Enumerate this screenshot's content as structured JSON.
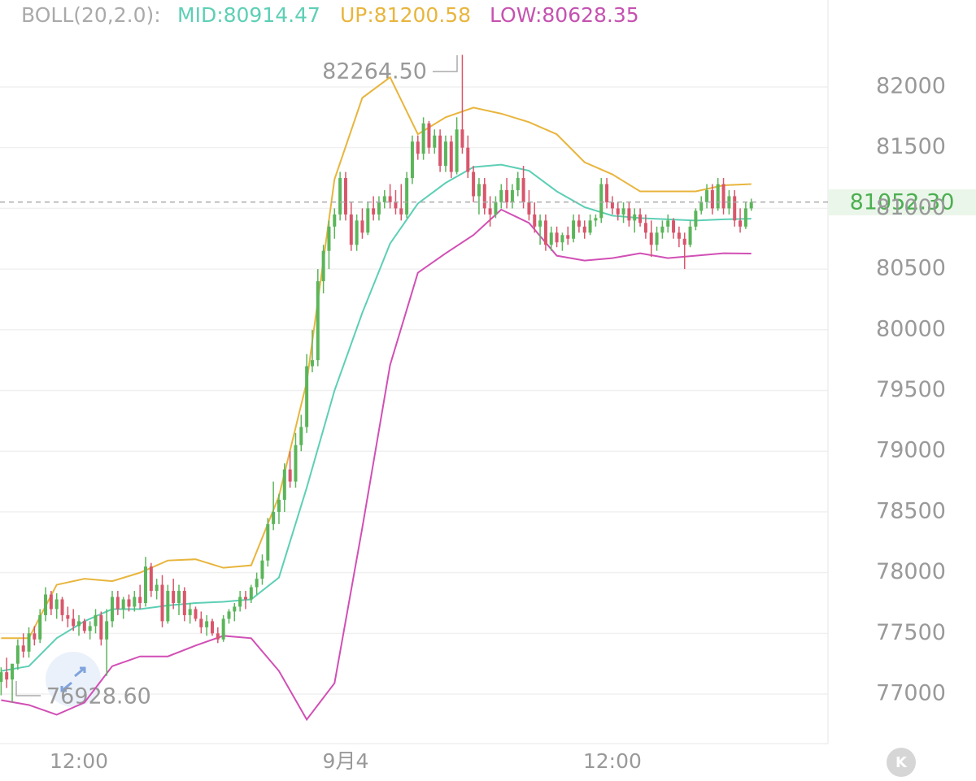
{
  "chart_data": {
    "type": "candlestick",
    "header": {
      "name": "BOLL(20,2.0):",
      "mid": "MID:80914.47",
      "up": "UP:81200.58",
      "low": "LOW:80628.35"
    },
    "up_color": "#5bb55a",
    "down_color": "#d8566b",
    "ohlc": [
      [
        77100,
        77220,
        76990,
        77180
      ],
      [
        77180,
        77300,
        77050,
        77120
      ],
      [
        77120,
        77200,
        76928.6,
        77250
      ],
      [
        77250,
        77450,
        77200,
        77400
      ],
      [
        77400,
        77500,
        77300,
        77350
      ],
      [
        77350,
        77550,
        77300,
        77500
      ],
      [
        77500,
        77560,
        77400,
        77450
      ],
      [
        77450,
        77700,
        77420,
        77650
      ],
      [
        77650,
        77880,
        77600,
        77820
      ],
      [
        77820,
        77850,
        77650,
        77700
      ],
      [
        77700,
        77830,
        77620,
        77780
      ],
      [
        77780,
        77800,
        77600,
        77650
      ],
      [
        77650,
        77720,
        77550,
        77620
      ],
      [
        77620,
        77700,
        77520,
        77560
      ],
      [
        77560,
        77650,
        77480,
        77600
      ],
      [
        77600,
        77620,
        77500,
        77520
      ],
      [
        77520,
        77600,
        77450,
        77560
      ],
      [
        77560,
        77700,
        77500,
        77650
      ],
      [
        77650,
        77680,
        77400,
        77450
      ],
      [
        77450,
        77700,
        77150,
        77600
      ],
      [
        77600,
        77850,
        77550,
        77800
      ],
      [
        77800,
        77850,
        77650,
        77700
      ],
      [
        77700,
        77800,
        77620,
        77780
      ],
      [
        77780,
        77820,
        77680,
        77720
      ],
      [
        77720,
        77850,
        77680,
        77800
      ],
      [
        77800,
        77900,
        77700,
        77750
      ],
      [
        77750,
        78130,
        77720,
        78050
      ],
      [
        78050,
        78080,
        77800,
        77850
      ],
      [
        77850,
        77950,
        77780,
        77900
      ],
      [
        77900,
        77980,
        77550,
        77600
      ],
      [
        77600,
        77900,
        77580,
        77850
      ],
      [
        77850,
        77950,
        77700,
        77750
      ],
      [
        77750,
        77900,
        77650,
        77850
      ],
      [
        77850,
        77880,
        77600,
        77650
      ],
      [
        77650,
        77750,
        77580,
        77700
      ],
      [
        77700,
        77720,
        77600,
        77620
      ],
      [
        77620,
        77680,
        77500,
        77550
      ],
      [
        77550,
        77650,
        77480,
        77600
      ],
      [
        77600,
        77620,
        77480,
        77500
      ],
      [
        77500,
        77550,
        77420,
        77450
      ],
      [
        77450,
        77650,
        77430,
        77620
      ],
      [
        77620,
        77700,
        77580,
        77680
      ],
      [
        77680,
        77750,
        77600,
        77720
      ],
      [
        77720,
        77850,
        77680,
        77800
      ],
      [
        77800,
        77850,
        77700,
        77780
      ],
      [
        77780,
        77900,
        77750,
        77880
      ],
      [
        77880,
        78000,
        77820,
        77950
      ],
      [
        77950,
        78150,
        77900,
        78100
      ],
      [
        78100,
        78450,
        78050,
        78400
      ],
      [
        78400,
        78750,
        78350,
        78500
      ],
      [
        78500,
        78650,
        78400,
        78600
      ],
      [
        78600,
        78900,
        78500,
        78850
      ],
      [
        78850,
        79000,
        78700,
        78750
      ],
      [
        78750,
        79150,
        78700,
        79050
      ],
      [
        79050,
        79300,
        79000,
        79200
      ],
      [
        79200,
        79800,
        79150,
        79700
      ],
      [
        79700,
        80000,
        79650,
        79750
      ],
      [
        79750,
        80500,
        79700,
        80400
      ],
      [
        80400,
        80700,
        80300,
        80650
      ],
      [
        80650,
        80900,
        80500,
        80850
      ],
      [
        80850,
        81000,
        80750,
        80950
      ],
      [
        80950,
        81300,
        80900,
        81250
      ],
      [
        81250,
        81300,
        80900,
        80950
      ],
      [
        80950,
        81050,
        80650,
        80700
      ],
      [
        80700,
        80950,
        80650,
        80900
      ],
      [
        80900,
        81000,
        80750,
        80800
      ],
      [
        80800,
        81050,
        80780,
        81000
      ],
      [
        81000,
        81100,
        80900,
        80950
      ],
      [
        80950,
        81100,
        80900,
        81050
      ],
      [
        81050,
        81150,
        81000,
        81100
      ],
      [
        81100,
        81200,
        81000,
        81050
      ],
      [
        81050,
        81150,
        80950,
        81000
      ],
      [
        81000,
        81200,
        80900,
        80950
      ],
      [
        80950,
        81300,
        80920,
        81250
      ],
      [
        81250,
        81600,
        81200,
        81550
      ],
      [
        81550,
        81600,
        81400,
        81450
      ],
      [
        81450,
        81750,
        81400,
        81700
      ],
      [
        81700,
        81720,
        81450,
        81500
      ],
      [
        81500,
        81650,
        81450,
        81600
      ],
      [
        81600,
        81650,
        81300,
        81350
      ],
      [
        81350,
        81600,
        81300,
        81550
      ],
      [
        81550,
        81600,
        81250,
        81300
      ],
      [
        81300,
        81750,
        81280,
        81650
      ],
      [
        81650,
        82264.5,
        81450,
        81500
      ],
      [
        81500,
        81600,
        81250,
        81300
      ],
      [
        81300,
        81350,
        81050,
        81100
      ],
      [
        81100,
        81250,
        80950,
        81200
      ],
      [
        81200,
        81250,
        80950,
        81000
      ],
      [
        81000,
        81100,
        80850,
        80950
      ],
      [
        80950,
        81100,
        80920,
        81050
      ],
      [
        81050,
        81200,
        81000,
        81150
      ],
      [
        81150,
        81250,
        81000,
        81050
      ],
      [
        81050,
        81200,
        81000,
        81150
      ],
      [
        81150,
        81300,
        81100,
        81250
      ],
      [
        81250,
        81350,
        81000,
        81050
      ],
      [
        81050,
        81150,
        80900,
        80950
      ],
      [
        80950,
        81050,
        80800,
        80850
      ],
      [
        80850,
        80950,
        80700,
        80900
      ],
      [
        80900,
        80950,
        80650,
        80700
      ],
      [
        80700,
        80850,
        80650,
        80800
      ],
      [
        80800,
        80850,
        80680,
        80720
      ],
      [
        80720,
        80800,
        80650,
        80780
      ],
      [
        80780,
        80850,
        80700,
        80750
      ],
      [
        80750,
        80950,
        80720,
        80900
      ],
      [
        80900,
        80950,
        80800,
        80850
      ],
      [
        80850,
        80900,
        80750,
        80800
      ],
      [
        80800,
        80950,
        80780,
        80900
      ],
      [
        80900,
        80950,
        80850,
        80920
      ],
      [
        80920,
        81250,
        80880,
        81200
      ],
      [
        81200,
        81250,
        81000,
        81050
      ],
      [
        81050,
        81100,
        80950,
        81000
      ],
      [
        81000,
        81050,
        80900,
        80950
      ],
      [
        80950,
        81050,
        80880,
        81000
      ],
      [
        81000,
        81050,
        80850,
        80900
      ],
      [
        80900,
        81000,
        80800,
        80950
      ],
      [
        80950,
        81000,
        80850,
        80880
      ],
      [
        80880,
        80950,
        80750,
        80800
      ],
      [
        80800,
        80900,
        80600,
        80700
      ],
      [
        80700,
        80850,
        80650,
        80800
      ],
      [
        80800,
        80900,
        80750,
        80850
      ],
      [
        80850,
        80950,
        80800,
        80900
      ],
      [
        80900,
        80920,
        80750,
        80800
      ],
      [
        80800,
        80850,
        80680,
        80750
      ],
      [
        80750,
        80800,
        80500,
        80700
      ],
      [
        80700,
        80900,
        80680,
        80850
      ],
      [
        80850,
        81000,
        80820,
        80980
      ],
      [
        80980,
        81100,
        80950,
        81050
      ],
      [
        81050,
        81200,
        81000,
        81150
      ],
      [
        81150,
        81200,
        80950,
        81000
      ],
      [
        81000,
        81250,
        80980,
        81200
      ],
      [
        81200,
        81250,
        80950,
        81000
      ],
      [
        81000,
        81150,
        80950,
        81100
      ],
      [
        81100,
        81150,
        80850,
        80900
      ],
      [
        80900,
        81000,
        80800,
        80850
      ],
      [
        80850,
        81050,
        80830,
        81000
      ],
      [
        81000,
        81080,
        80980,
        81052.3
      ]
    ],
    "bands": [
      {
        "color": "#e8b53d",
        "x": [
          0,
          5,
          10,
          15,
          20,
          25,
          30,
          35,
          40,
          45,
          50,
          55,
          60,
          65,
          70,
          75,
          80,
          85,
          90,
          95,
          100,
          105,
          110,
          115,
          120,
          125,
          130,
          135
        ],
        "values": [
          77460,
          77460,
          77900,
          77950,
          77930,
          78000,
          78100,
          78110,
          78040,
          78060,
          78630,
          79570,
          81240,
          81910,
          82080,
          81610,
          81750,
          81830,
          81780,
          81710,
          81610,
          81380,
          81280,
          81140,
          81140,
          81140,
          81190,
          81200
        ]
      },
      {
        "color": "#5dcfb5",
        "x": [
          0,
          5,
          10,
          15,
          20,
          25,
          30,
          35,
          40,
          45,
          50,
          55,
          60,
          65,
          70,
          75,
          80,
          85,
          90,
          95,
          100,
          105,
          110,
          115,
          120,
          125,
          130,
          135
        ],
        "values": [
          77190,
          77230,
          77460,
          77600,
          77700,
          77700,
          77730,
          77750,
          77760,
          77780,
          77960,
          78700,
          79500,
          80140,
          80710,
          81040,
          81210,
          81340,
          81360,
          81310,
          81140,
          81010,
          80940,
          80920,
          80910,
          80900,
          80910,
          80915
        ]
      },
      {
        "color": "#d14fb5",
        "x": [
          0,
          5,
          10,
          15,
          20,
          25,
          30,
          35,
          40,
          45,
          50,
          55,
          60,
          65,
          70,
          75,
          80,
          85,
          90,
          95,
          100,
          105,
          110,
          115,
          120,
          125,
          130,
          135
        ],
        "values": [
          76950,
          76910,
          76830,
          76930,
          77230,
          77310,
          77310,
          77400,
          77480,
          77460,
          77190,
          76790,
          77090,
          78370,
          79710,
          80470,
          80630,
          80780,
          80990,
          80880,
          80610,
          80570,
          80590,
          80630,
          80590,
          80610,
          80630,
          80628
        ]
      }
    ],
    "ylim": [
      76592,
      82716
    ],
    "yticks": [
      77000,
      77500,
      78000,
      78500,
      79000,
      79500,
      80000,
      80500,
      81000,
      81500,
      82000
    ],
    "xlim": [
      -0.2,
      148.8
    ],
    "xticks": [
      {
        "value": 14,
        "label": "12:00"
      },
      {
        "value": 62,
        "label": "9月4"
      },
      {
        "value": 110,
        "label": "12:00"
      }
    ],
    "grid": true,
    "last_price": {
      "value": 81052.3,
      "label": "81052.30"
    },
    "max_label": "82264.50",
    "min_label": "76928.60"
  }
}
